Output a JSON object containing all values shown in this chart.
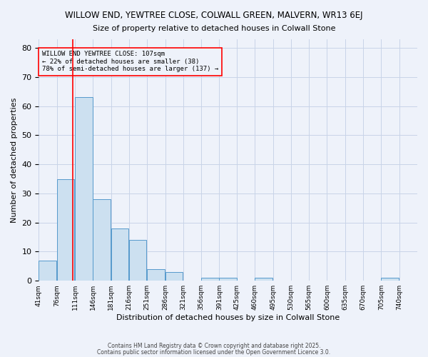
{
  "title1": "WILLOW END, YEWTREE CLOSE, COLWALL GREEN, MALVERN, WR13 6EJ",
  "title2": "Size of property relative to detached houses in Colwall Stone",
  "xlabel": "Distribution of detached houses by size in Colwall Stone",
  "ylabel": "Number of detached properties",
  "bin_labels": [
    "41sqm",
    "76sqm",
    "111sqm",
    "146sqm",
    "181sqm",
    "216sqm",
    "251sqm",
    "286sqm",
    "321sqm",
    "356sqm",
    "391sqm",
    "425sqm",
    "460sqm",
    "495sqm",
    "530sqm",
    "565sqm",
    "600sqm",
    "635sqm",
    "670sqm",
    "705sqm",
    "740sqm"
  ],
  "bin_edges": [
    41,
    76,
    111,
    146,
    181,
    216,
    251,
    286,
    321,
    356,
    391,
    425,
    460,
    495,
    530,
    565,
    600,
    635,
    670,
    705,
    740
  ],
  "values": [
    7,
    35,
    63,
    28,
    18,
    14,
    4,
    3,
    0,
    1,
    1,
    0,
    1,
    0,
    0,
    0,
    0,
    0,
    0,
    1,
    0
  ],
  "bar_color": "#cce0f0",
  "bar_edge_color": "#5599cc",
  "red_line_x": 107,
  "annotation_title": "WILLOW END YEWTREE CLOSE: 107sqm",
  "annotation_line1": "← 22% of detached houses are smaller (38)",
  "annotation_line2": "78% of semi-detached houses are larger (137) →",
  "ylim": [
    0,
    83
  ],
  "yticks": [
    0,
    10,
    20,
    30,
    40,
    50,
    60,
    70,
    80
  ],
  "footer1": "Contains HM Land Registry data © Crown copyright and database right 2025.",
  "footer2": "Contains public sector information licensed under the Open Government Licence 3.0.",
  "bg_color": "#eef2fa",
  "grid_color": "#c8d4e8"
}
